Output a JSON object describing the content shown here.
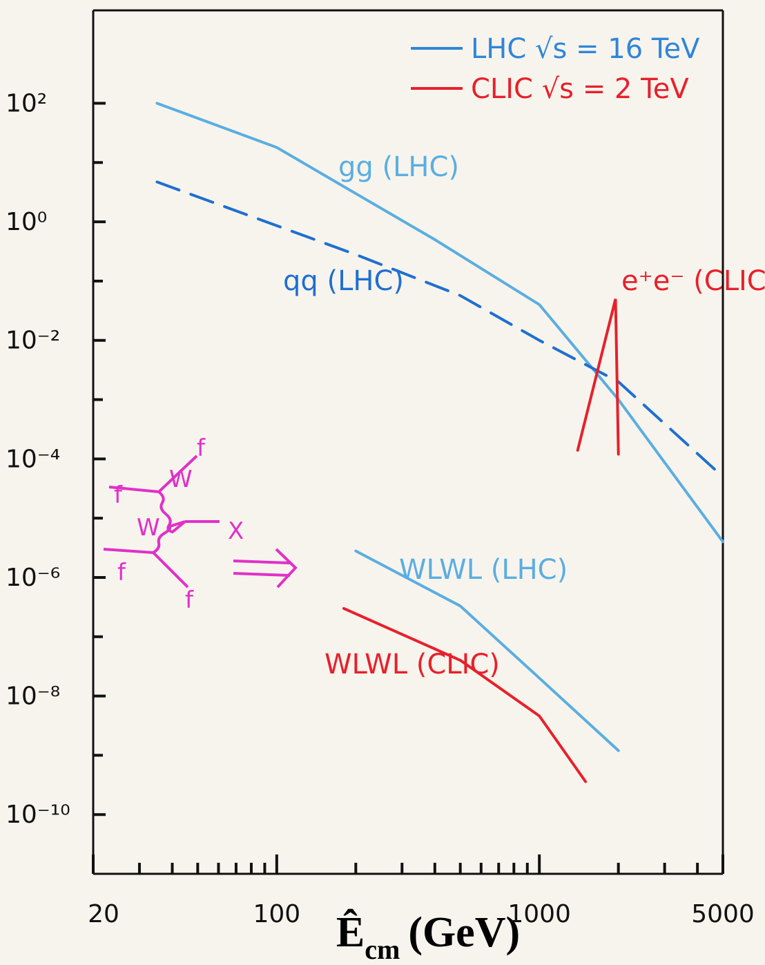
{
  "chart_data": {
    "type": "line",
    "xlim": [
      20,
      5000
    ],
    "xlog": true,
    "xticks": [
      20,
      100,
      1000,
      5000
    ],
    "xminorticks": [
      30,
      40,
      50,
      60,
      70,
      80,
      90,
      200,
      300,
      400,
      500,
      600,
      700,
      800,
      900,
      2000,
      3000,
      4000
    ],
    "ylim": [
      1e-11,
      4000
    ],
    "ylog": true,
    "yticks": [
      {
        "value": 100,
        "label": "10²"
      },
      {
        "value": 1,
        "label": "10⁰"
      },
      {
        "value": 0.01,
        "label": "10⁻²"
      },
      {
        "value": 0.0001,
        "label": "10⁻⁴"
      },
      {
        "value": 1e-06,
        "label": "10⁻⁶"
      },
      {
        "value": 1e-08,
        "label": "10⁻⁸"
      },
      {
        "value": 1e-10,
        "label": "10⁻¹⁰"
      }
    ],
    "yminorticks": [
      10,
      0.1,
      0.001,
      1e-05,
      1e-07,
      1e-09
    ],
    "x_label": "Ê",
    "x_label_sub": "cm",
    "x_label_unit": "(GeV)",
    "legend": [
      {
        "label": "LHC √s = 16 TeV",
        "color": "#2f86d8"
      },
      {
        "label": "CLIC √s = 2 TeV",
        "color": "#e8202a"
      }
    ],
    "series": [
      {
        "name": "gg (LHC)",
        "color": "#5aaee0",
        "dash": false,
        "x": [
          35,
          100,
          200,
          400,
          1000,
          2000,
          5000
        ],
        "values": [
          100,
          18,
          3,
          0.5,
          0.04,
          0.001,
          4e-06
        ]
      },
      {
        "name": "qq (LHC)",
        "color": "#1f6fd0",
        "dash": true,
        "x": [
          35,
          200,
          500,
          1000,
          2000,
          5000
        ],
        "values": [
          4.7,
          0.28,
          0.057,
          0.01,
          0.002,
          5e-05
        ]
      },
      {
        "name": "WLWL (LHC)",
        "color": "#5aaee0",
        "dash": false,
        "x": [
          200,
          500,
          1000,
          2000
        ],
        "values": [
          2.8e-06,
          3.3e-07,
          2e-08,
          1.2e-09
        ]
      },
      {
        "name": "WLWL (CLIC)",
        "color": "#e8202a",
        "dash": false,
        "x": [
          180,
          500,
          1000,
          1500
        ],
        "values": [
          3e-07,
          4e-08,
          4.6e-09,
          3.6e-10
        ]
      },
      {
        "name": "e⁺e⁻ (CLIC)",
        "color": "#e8202a",
        "dash": false,
        "x": [
          1400,
          1950,
          2000
        ],
        "values": [
          0.00014,
          0.05,
          0.00012
        ]
      }
    ]
  },
  "diagram": {
    "labels": [
      "f",
      "f",
      "W",
      "W",
      "X",
      "f",
      "f"
    ]
  }
}
